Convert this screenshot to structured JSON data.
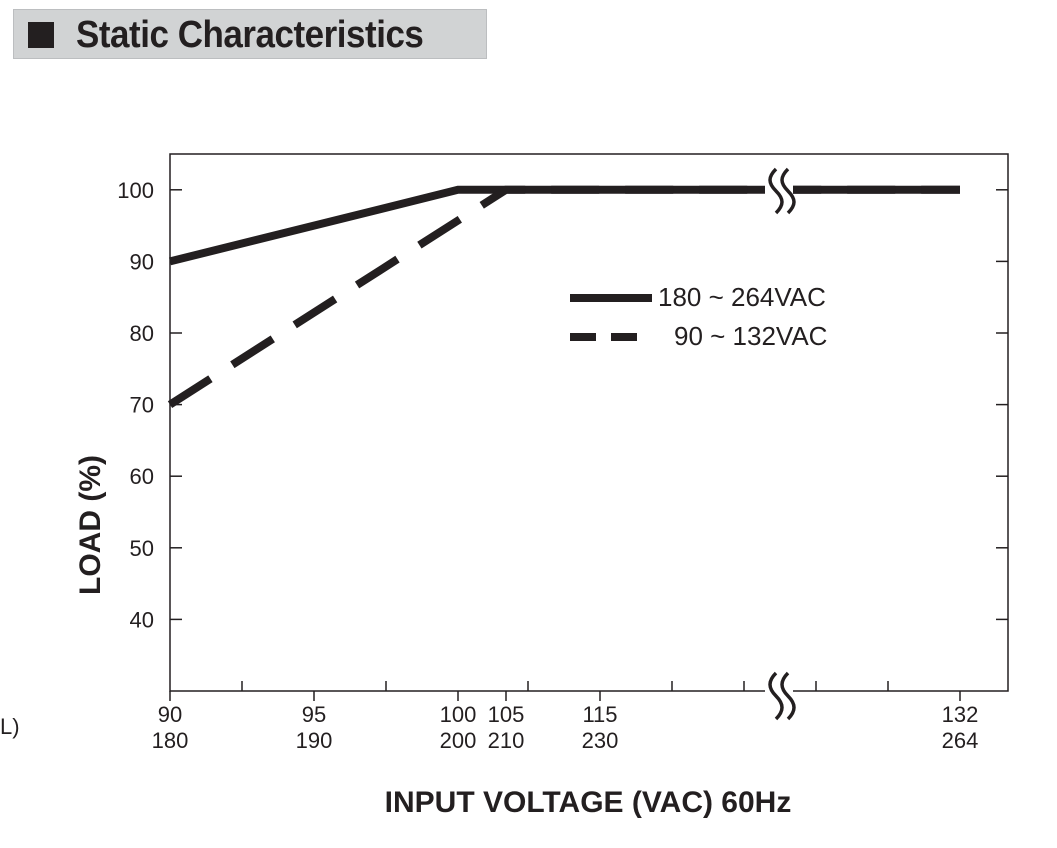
{
  "header": {
    "title": "Static Characteristics"
  },
  "edge_fragment": "L)",
  "chart_data": {
    "type": "line",
    "xlabel": "INPUT VOLTAGE (VAC) 60Hz",
    "ylabel": "LOAD (%)",
    "y_ticks": [
      40,
      50,
      60,
      70,
      80,
      90,
      100
    ],
    "ylim": [
      30,
      105
    ],
    "x_ticks": [
      {
        "low": "90",
        "high": "180"
      },
      {
        "low": "95",
        "high": "190"
      },
      {
        "low": "100",
        "high": "200"
      },
      {
        "low": "105",
        "high": "210"
      },
      {
        "low": "115",
        "high": "230"
      },
      {
        "low": "132",
        "high": "264"
      }
    ],
    "axis_break": "between 115/230 and 132/264",
    "grid": false,
    "legend_position": "center-right",
    "series": [
      {
        "name": "180 ~ 264VAC",
        "style": "solid",
        "x_axis_row": "high",
        "x": [
          "180",
          "200",
          "264"
        ],
        "y": [
          90,
          100,
          100
        ]
      },
      {
        "name": "90 ~ 132VAC",
        "style": "dashed",
        "x_axis_row": "low",
        "x": [
          "90",
          "105",
          "132"
        ],
        "y": [
          70,
          100,
          100
        ]
      }
    ]
  },
  "colors": {
    "ink": "#231f20",
    "frame": "#231f20",
    "title_background": "#d1d3d4"
  }
}
